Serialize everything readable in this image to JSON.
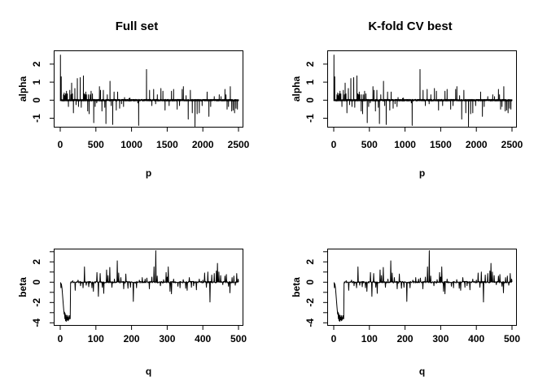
{
  "figure": {
    "description": "2x2 grid of R line plots comparing coefficient estimates",
    "colors": {
      "line": "#000000",
      "text": "#000000",
      "background": "#ffffff"
    }
  },
  "chart_data": {
    "type": "line",
    "layout": "2 columns x 2 rows; left and right columns display identical series",
    "panels": [
      {
        "title": "Full set",
        "series": "alpha",
        "row": 0,
        "col": 0
      },
      {
        "title": "K-fold CV best",
        "series": "alpha",
        "row": 0,
        "col": 1
      },
      {
        "title": "",
        "series": "beta",
        "row": 1,
        "col": 0
      },
      {
        "title": "",
        "series": "beta",
        "row": 1,
        "col": 1
      }
    ],
    "series": {
      "alpha": {
        "ylabel": "alpha",
        "xlabel": "p",
        "n_points": 2500,
        "xlim": [
          0,
          2500
        ],
        "ylim": [
          -1.5,
          2.74
        ],
        "xticks": [
          0,
          500,
          1000,
          1500,
          2000,
          2500
        ],
        "yticks": [
          [
            2,
            "2"
          ],
          [
            1,
            "1"
          ],
          [
            0,
            "0"
          ],
          [
            -1,
            "-1"
          ]
        ],
        "baseline": 0,
        "noise_amplitude": 0.045,
        "lead_in": [],
        "spikes": [
          [
            3,
            2.5
          ],
          [
            14,
            1.3
          ],
          [
            45,
            0.3
          ],
          [
            55,
            0.4
          ],
          [
            65,
            0.25
          ],
          [
            75,
            0.35
          ],
          [
            88,
            0.5
          ],
          [
            100,
            0.35
          ],
          [
            115,
            -0.35
          ],
          [
            134,
            0.55
          ],
          [
            150,
            0.3
          ],
          [
            160,
            0.95
          ],
          [
            172,
            0.35
          ],
          [
            185,
            -0.7
          ],
          [
            205,
            0.65
          ],
          [
            222,
            -0.25
          ],
          [
            240,
            1.2
          ],
          [
            256,
            -0.35
          ],
          [
            280,
            1.25
          ],
          [
            295,
            -0.4
          ],
          [
            325,
            1.35
          ],
          [
            338,
            0.35
          ],
          [
            348,
            0.3
          ],
          [
            358,
            0.45
          ],
          [
            368,
            0.3
          ],
          [
            385,
            -0.6
          ],
          [
            395,
            0.3
          ],
          [
            405,
            -0.75
          ],
          [
            420,
            0.3
          ],
          [
            433,
            0.5
          ],
          [
            452,
            0.35
          ],
          [
            470,
            -1.25
          ],
          [
            490,
            -0.35
          ],
          [
            512,
            -0.15
          ],
          [
            550,
            0.75
          ],
          [
            565,
            0.55
          ],
          [
            585,
            -0.6
          ],
          [
            605,
            0.55
          ],
          [
            625,
            -0.4
          ],
          [
            641,
            -1.3
          ],
          [
            660,
            0.3
          ],
          [
            698,
            1.05
          ],
          [
            715,
            -0.3
          ],
          [
            736,
            -1.35
          ],
          [
            755,
            0.45
          ],
          [
            786,
            -0.55
          ],
          [
            805,
            0.45
          ],
          [
            833,
            -0.45
          ],
          [
            860,
            -0.2
          ],
          [
            888,
            -0.35
          ],
          [
            902,
            0.15
          ],
          [
            965,
            0.1
          ],
          [
            978,
            0.12
          ],
          [
            1088,
            -0.15
          ],
          [
            1100,
            -1.4
          ],
          [
            1210,
            1.7
          ],
          [
            1253,
            0.55
          ],
          [
            1285,
            -0.3
          ],
          [
            1310,
            0.6
          ],
          [
            1338,
            -0.2
          ],
          [
            1362,
            0.3
          ],
          [
            1412,
            0.65
          ],
          [
            1440,
            0.5
          ],
          [
            1470,
            -0.55
          ],
          [
            1527,
            -0.3
          ],
          [
            1560,
            0.5
          ],
          [
            1590,
            0.6
          ],
          [
            1640,
            -0.5
          ],
          [
            1673,
            -0.3
          ],
          [
            1710,
            0.6
          ],
          [
            1727,
            0.75
          ],
          [
            1765,
            0.25
          ],
          [
            1795,
            -1.05
          ],
          [
            1825,
            0.55
          ],
          [
            1852,
            -0.7
          ],
          [
            1890,
            -1.45
          ],
          [
            1920,
            -0.75
          ],
          [
            1950,
            -0.7
          ],
          [
            1990,
            -0.3
          ],
          [
            2060,
            0.45
          ],
          [
            2085,
            -0.9
          ],
          [
            2110,
            -0.35
          ],
          [
            2160,
            0.2
          ],
          [
            2230,
            0.3
          ],
          [
            2255,
            0.2
          ],
          [
            2310,
            0.6
          ],
          [
            2325,
            0.3
          ],
          [
            2340,
            -0.5
          ],
          [
            2360,
            -0.35
          ],
          [
            2385,
            0.75
          ],
          [
            2405,
            -0.6
          ],
          [
            2425,
            -0.55
          ],
          [
            2445,
            -0.7
          ],
          [
            2465,
            -0.45
          ],
          [
            2485,
            -0.5
          ]
        ]
      },
      "beta": {
        "ylabel": "beta",
        "xlabel": "q",
        "n_points": 500,
        "xlim": [
          0,
          500
        ],
        "ylim": [
          -4.25,
          3.25
        ],
        "xticks": [
          0,
          100,
          200,
          300,
          400,
          500
        ],
        "yticks": [
          [
            3,
            ""
          ],
          [
            2,
            "2"
          ],
          [
            1,
            ""
          ],
          [
            0,
            "0"
          ],
          [
            -1,
            ""
          ],
          [
            -2,
            "-2"
          ],
          [
            -3,
            ""
          ],
          [
            -4,
            "-4"
          ]
        ],
        "baseline": 0,
        "noise_amplitude": 0.08,
        "lead_in": [
          [
            1,
            -0.05
          ],
          [
            2,
            -0.55
          ],
          [
            3,
            -0.15
          ],
          [
            4,
            -0.35
          ],
          [
            5,
            -0.6
          ],
          [
            6,
            -1.05
          ],
          [
            7,
            -1.5
          ],
          [
            8,
            -1.95
          ],
          [
            9,
            -2.4
          ],
          [
            10,
            -2.8
          ],
          [
            11,
            -3.15
          ],
          [
            12,
            -2.95
          ],
          [
            13,
            -3.6
          ],
          [
            14,
            -3.1
          ],
          [
            15,
            -3.8
          ],
          [
            16,
            -3.3
          ],
          [
            17,
            -3.85
          ],
          [
            18,
            -3.25
          ],
          [
            19,
            -3.7
          ],
          [
            20,
            -3.45
          ],
          [
            21,
            -3.8
          ],
          [
            22,
            -3.3
          ],
          [
            23,
            -3.75
          ],
          [
            24,
            -3.5
          ],
          [
            25,
            -3.65
          ],
          [
            26,
            -3.3
          ],
          [
            27,
            -3.55
          ],
          [
            28,
            -3.6
          ],
          [
            29,
            -0.1
          ]
        ],
        "spikes": [
          [
            35,
            0.15
          ],
          [
            42,
            -0.8
          ],
          [
            50,
            0.2
          ],
          [
            57,
            -0.35
          ],
          [
            64,
            -0.55
          ],
          [
            68,
            1.5
          ],
          [
            73,
            -0.3
          ],
          [
            80,
            -0.45
          ],
          [
            89,
            -0.55
          ],
          [
            93,
            -0.9
          ],
          [
            103,
            0.95
          ],
          [
            107,
            -1.4
          ],
          [
            112,
            0.85
          ],
          [
            118,
            -0.5
          ],
          [
            122,
            -1.1
          ],
          [
            130,
            1.2
          ],
          [
            134,
            0.65
          ],
          [
            139,
            1.45
          ],
          [
            145,
            -0.5
          ],
          [
            152,
            0.3
          ],
          [
            160,
            2.1
          ],
          [
            164,
            0.9
          ],
          [
            170,
            0.45
          ],
          [
            178,
            -0.65
          ],
          [
            184,
            0.8
          ],
          [
            190,
            -0.6
          ],
          [
            197,
            -0.5
          ],
          [
            205,
            -1.9
          ],
          [
            214,
            -0.55
          ],
          [
            222,
            0.2
          ],
          [
            230,
            0.45
          ],
          [
            238,
            0.3
          ],
          [
            243,
            0.4
          ],
          [
            250,
            -0.65
          ],
          [
            257,
            0.5
          ],
          [
            263,
            1.5
          ],
          [
            268,
            3.1
          ],
          [
            272,
            0.6
          ],
          [
            281,
            -0.35
          ],
          [
            290,
            0.25
          ],
          [
            297,
            0.95
          ],
          [
            300,
            0.5
          ],
          [
            303,
            1.5
          ],
          [
            308,
            -0.9
          ],
          [
            312,
            -1.15
          ],
          [
            318,
            0.3
          ],
          [
            330,
            -0.4
          ],
          [
            336,
            -0.55
          ],
          [
            345,
            0.25
          ],
          [
            352,
            -0.6
          ],
          [
            356,
            -0.8
          ],
          [
            362,
            0.45
          ],
          [
            368,
            -0.5
          ],
          [
            374,
            -0.35
          ],
          [
            382,
            -0.75
          ],
          [
            390,
            0.3
          ],
          [
            400,
            0.2
          ],
          [
            405,
            0.9
          ],
          [
            410,
            -0.5
          ],
          [
            414,
            1.0
          ],
          [
            420,
            -1.95
          ],
          [
            425,
            0.7
          ],
          [
            432,
            0.85
          ],
          [
            438,
            1.1
          ],
          [
            441,
            1.85
          ],
          [
            445,
            1.0
          ],
          [
            450,
            0.65
          ],
          [
            456,
            -0.25
          ],
          [
            462,
            0.6
          ],
          [
            466,
            0.75
          ],
          [
            472,
            -0.4
          ],
          [
            476,
            -1.05
          ],
          [
            482,
            0.45
          ],
          [
            487,
            0.6
          ],
          [
            491,
            -0.3
          ],
          [
            495,
            0.85
          ],
          [
            499,
            0.3
          ]
        ]
      }
    }
  }
}
